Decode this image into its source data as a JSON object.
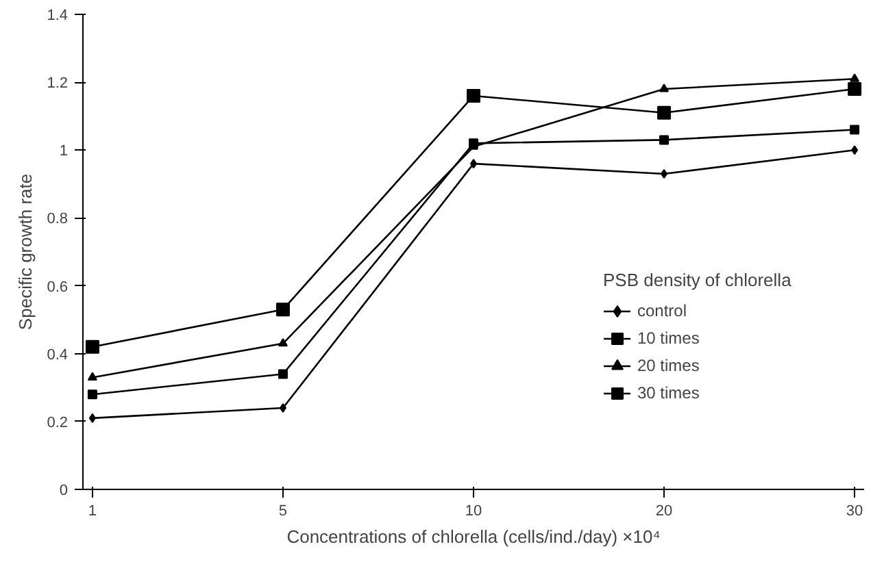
{
  "chart_data": {
    "type": "line",
    "xlabel": "Concentrations of chlorella (cells/ind./day) ×10⁴",
    "ylabel": "Specific growth rate",
    "legend_title": "PSB density of chlorella",
    "categories": [
      "1",
      "5",
      "10",
      "20",
      "30"
    ],
    "series": [
      {
        "name": "control",
        "color": "#000000",
        "marker": "diamond",
        "values": [
          0.21,
          0.24,
          0.96,
          0.93,
          1.0
        ]
      },
      {
        "name": "10 times",
        "color": "#000000",
        "marker": "square",
        "values": [
          0.28,
          0.34,
          1.02,
          1.03,
          1.06
        ]
      },
      {
        "name": "20 times",
        "color": "#000000",
        "marker": "triangle",
        "values": [
          0.33,
          0.43,
          1.01,
          1.18,
          1.21
        ]
      },
      {
        "name": "30 times",
        "color": "#000000",
        "marker": "square",
        "values": [
          0.42,
          0.53,
          1.16,
          1.11,
          1.18
        ]
      }
    ],
    "ylim": [
      0,
      1.4
    ],
    "yticks": [
      0,
      0.2,
      0.4,
      0.6,
      0.8,
      1,
      1.2,
      1.4
    ],
    "grid": false,
    "legend": "right",
    "line_style": "solid"
  }
}
